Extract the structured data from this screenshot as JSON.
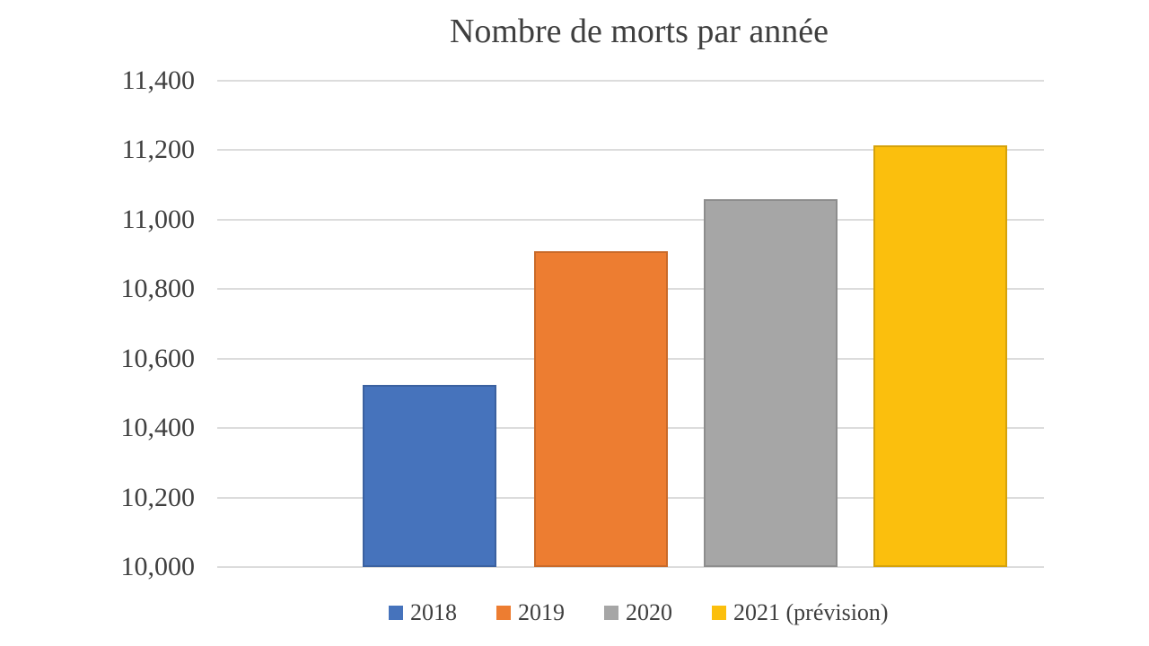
{
  "chart_data": {
    "type": "bar",
    "title": "Nombre de morts par année",
    "categories": [
      "2018",
      "2019",
      "2020",
      "2021 (prévision)"
    ],
    "values": [
      10525,
      10910,
      11060,
      11215
    ],
    "series_colors": [
      "#4673BC",
      "#ED7D31",
      "#A6A6A6",
      "#FBBF0D"
    ],
    "ylim": [
      10000,
      11400
    ],
    "ytick_values": [
      11400,
      11200,
      11000,
      10800,
      10600,
      10400,
      10200,
      10000
    ],
    "ytick_labels": [
      "11,400",
      "11,200",
      "11,000",
      "10,800",
      "10,600",
      "10,400",
      "10,200",
      "10,000"
    ],
    "xlabel": "",
    "ylabel": "",
    "grid": "horizontal",
    "legend_position": "bottom",
    "text_color": "#3F3F3F",
    "gridline_color": "#DCDCDC",
    "background_color": "#FFFFFF"
  }
}
